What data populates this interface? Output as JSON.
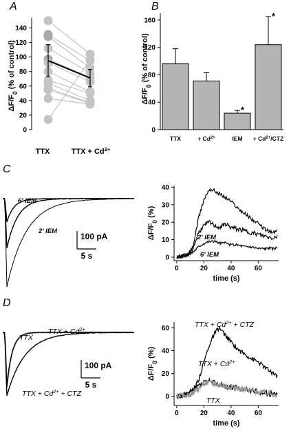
{
  "panels": {
    "A": "A",
    "B": "B",
    "C": "C",
    "D": "D"
  },
  "chart_data": [
    {
      "id": "A",
      "type": "scatter",
      "ylabel": "ΔF/F0 (% of control)",
      "ylim": [
        0,
        150
      ],
      "yticks": [
        0,
        20,
        40,
        60,
        80,
        100,
        120,
        140
      ],
      "categories": [
        "TTX",
        "TTX + Cd2+"
      ],
      "pairs": [
        [
          150,
          104
        ],
        [
          131,
          95
        ],
        [
          128,
          85
        ],
        [
          112,
          78
        ],
        [
          97,
          72
        ],
        [
          92,
          66
        ],
        [
          80,
          52
        ],
        [
          68,
          50
        ],
        [
          64,
          40
        ],
        [
          57,
          37
        ],
        [
          55,
          36
        ],
        [
          43,
          35
        ],
        [
          14,
          96
        ]
      ],
      "mean": [
        95,
        71
      ],
      "error": [
        22,
        12
      ]
    },
    {
      "id": "B",
      "type": "bar",
      "ylabel": "ΔF/F0 (% of control)",
      "ylim": [
        0,
        170
      ],
      "yticks": [
        0,
        40,
        80,
        120,
        160
      ],
      "categories": [
        "TTX",
        "+ Cd2+",
        "IEM",
        "+ Cd2+/CTZ"
      ],
      "values": [
        96,
        71,
        24,
        124
      ],
      "errors": [
        22,
        12,
        4,
        41
      ],
      "significant": [
        "",
        "",
        "*",
        "*"
      ],
      "bar_color": "#b4b4b4"
    },
    {
      "id": "C-left",
      "type": "line",
      "scalebar_y": "100 pA",
      "scalebar_x": "5 s",
      "series": [
        {
          "name": "",
          "depth": -128,
          "recovery": 11,
          "color": "#000000"
        },
        {
          "name": "2' IEM",
          "depth": -72,
          "recovery": 6,
          "color": "#000000"
        },
        {
          "name": "6' IEM",
          "depth": -34,
          "recovery": 4,
          "color": "#000000"
        }
      ]
    },
    {
      "id": "C-right",
      "type": "line",
      "xlabel": "time (s)",
      "ylabel": "ΔF/F0 (%)",
      "xlim": [
        -2,
        75
      ],
      "ylim": [
        -2,
        41
      ],
      "xticks": [
        0,
        20,
        40,
        60
      ],
      "yticks": [
        0,
        10,
        20,
        30,
        40
      ],
      "series": [
        {
          "name": "",
          "x": [
            0,
            8,
            12,
            16,
            20,
            24,
            28,
            32,
            36,
            40,
            45,
            50,
            55,
            60,
            65,
            70,
            74
          ],
          "y": [
            0,
            1,
            6,
            22,
            33,
            39,
            38,
            36,
            34,
            32,
            28,
            25,
            22,
            19,
            16,
            14,
            15
          ],
          "color": "#000000"
        },
        {
          "name": "2' IEM",
          "x": [
            0,
            8,
            12,
            16,
            20,
            24,
            28,
            32,
            36,
            40,
            45,
            50,
            55,
            60,
            65,
            70,
            74
          ],
          "y": [
            0,
            1,
            5,
            14,
            18,
            20,
            18,
            17,
            19,
            17,
            16,
            15,
            14,
            13,
            12,
            11,
            12
          ],
          "color": "#000000"
        },
        {
          "name": "6' IEM",
          "x": [
            0,
            8,
            12,
            16,
            20,
            24,
            28,
            32,
            36,
            40,
            45,
            50,
            55,
            60,
            65,
            70,
            74
          ],
          "y": [
            0,
            1,
            3,
            6,
            8,
            9,
            9,
            8,
            8,
            7,
            7,
            6,
            6,
            5,
            5,
            5,
            5
          ],
          "color": "#000000"
        }
      ]
    },
    {
      "id": "D-left",
      "type": "line",
      "scalebar_y": "100 pA",
      "scalebar_x": "5 s",
      "series": [
        {
          "name": "TTX",
          "depth": -80,
          "recovery": 3,
          "color": "#999999"
        },
        {
          "name": "TTX + Cd2+",
          "depth": -78,
          "recovery": 3,
          "color": "#000000"
        },
        {
          "name": "TTX + Cd2+ + CTZ",
          "depth": -92,
          "recovery": 10,
          "color": "#000000"
        }
      ]
    },
    {
      "id": "D-right",
      "type": "line",
      "xlabel": "time (s)",
      "ylabel": "ΔF/F0 (%)",
      "xlim": [
        -2,
        75
      ],
      "ylim": [
        -8,
        65
      ],
      "xticks": [
        0,
        20,
        40,
        60
      ],
      "yticks": [
        0,
        20,
        40,
        60
      ],
      "series": [
        {
          "name": "TTX + Cd2+ + CTZ",
          "x": [
            0,
            8,
            12,
            16,
            20,
            24,
            28,
            31,
            34,
            38,
            42,
            46,
            50,
            55,
            60,
            65,
            70,
            74
          ],
          "y": [
            0,
            2,
            5,
            14,
            30,
            45,
            55,
            60,
            56,
            50,
            45,
            40,
            37,
            33,
            30,
            25,
            21,
            18
          ],
          "color": "#000000"
        },
        {
          "name": "TTX + Cd2+",
          "x": [
            0,
            8,
            12,
            16,
            20,
            24,
            28,
            32,
            36,
            40,
            45,
            50,
            55,
            60,
            65,
            70,
            74
          ],
          "y": [
            0,
            2,
            5,
            9,
            12,
            13,
            12,
            10,
            9,
            8,
            7,
            6,
            5,
            4,
            3,
            2,
            2
          ],
          "color": "#000000"
        },
        {
          "name": "TTX",
          "x": [
            0,
            8,
            12,
            16,
            20,
            24,
            28,
            32,
            36,
            40,
            45,
            50,
            55,
            60,
            65,
            70,
            74
          ],
          "y": [
            0,
            1,
            3,
            7,
            11,
            12,
            11,
            10,
            9,
            8,
            7,
            6,
            5,
            4,
            3,
            2,
            1
          ],
          "color": "#999999"
        }
      ]
    }
  ]
}
